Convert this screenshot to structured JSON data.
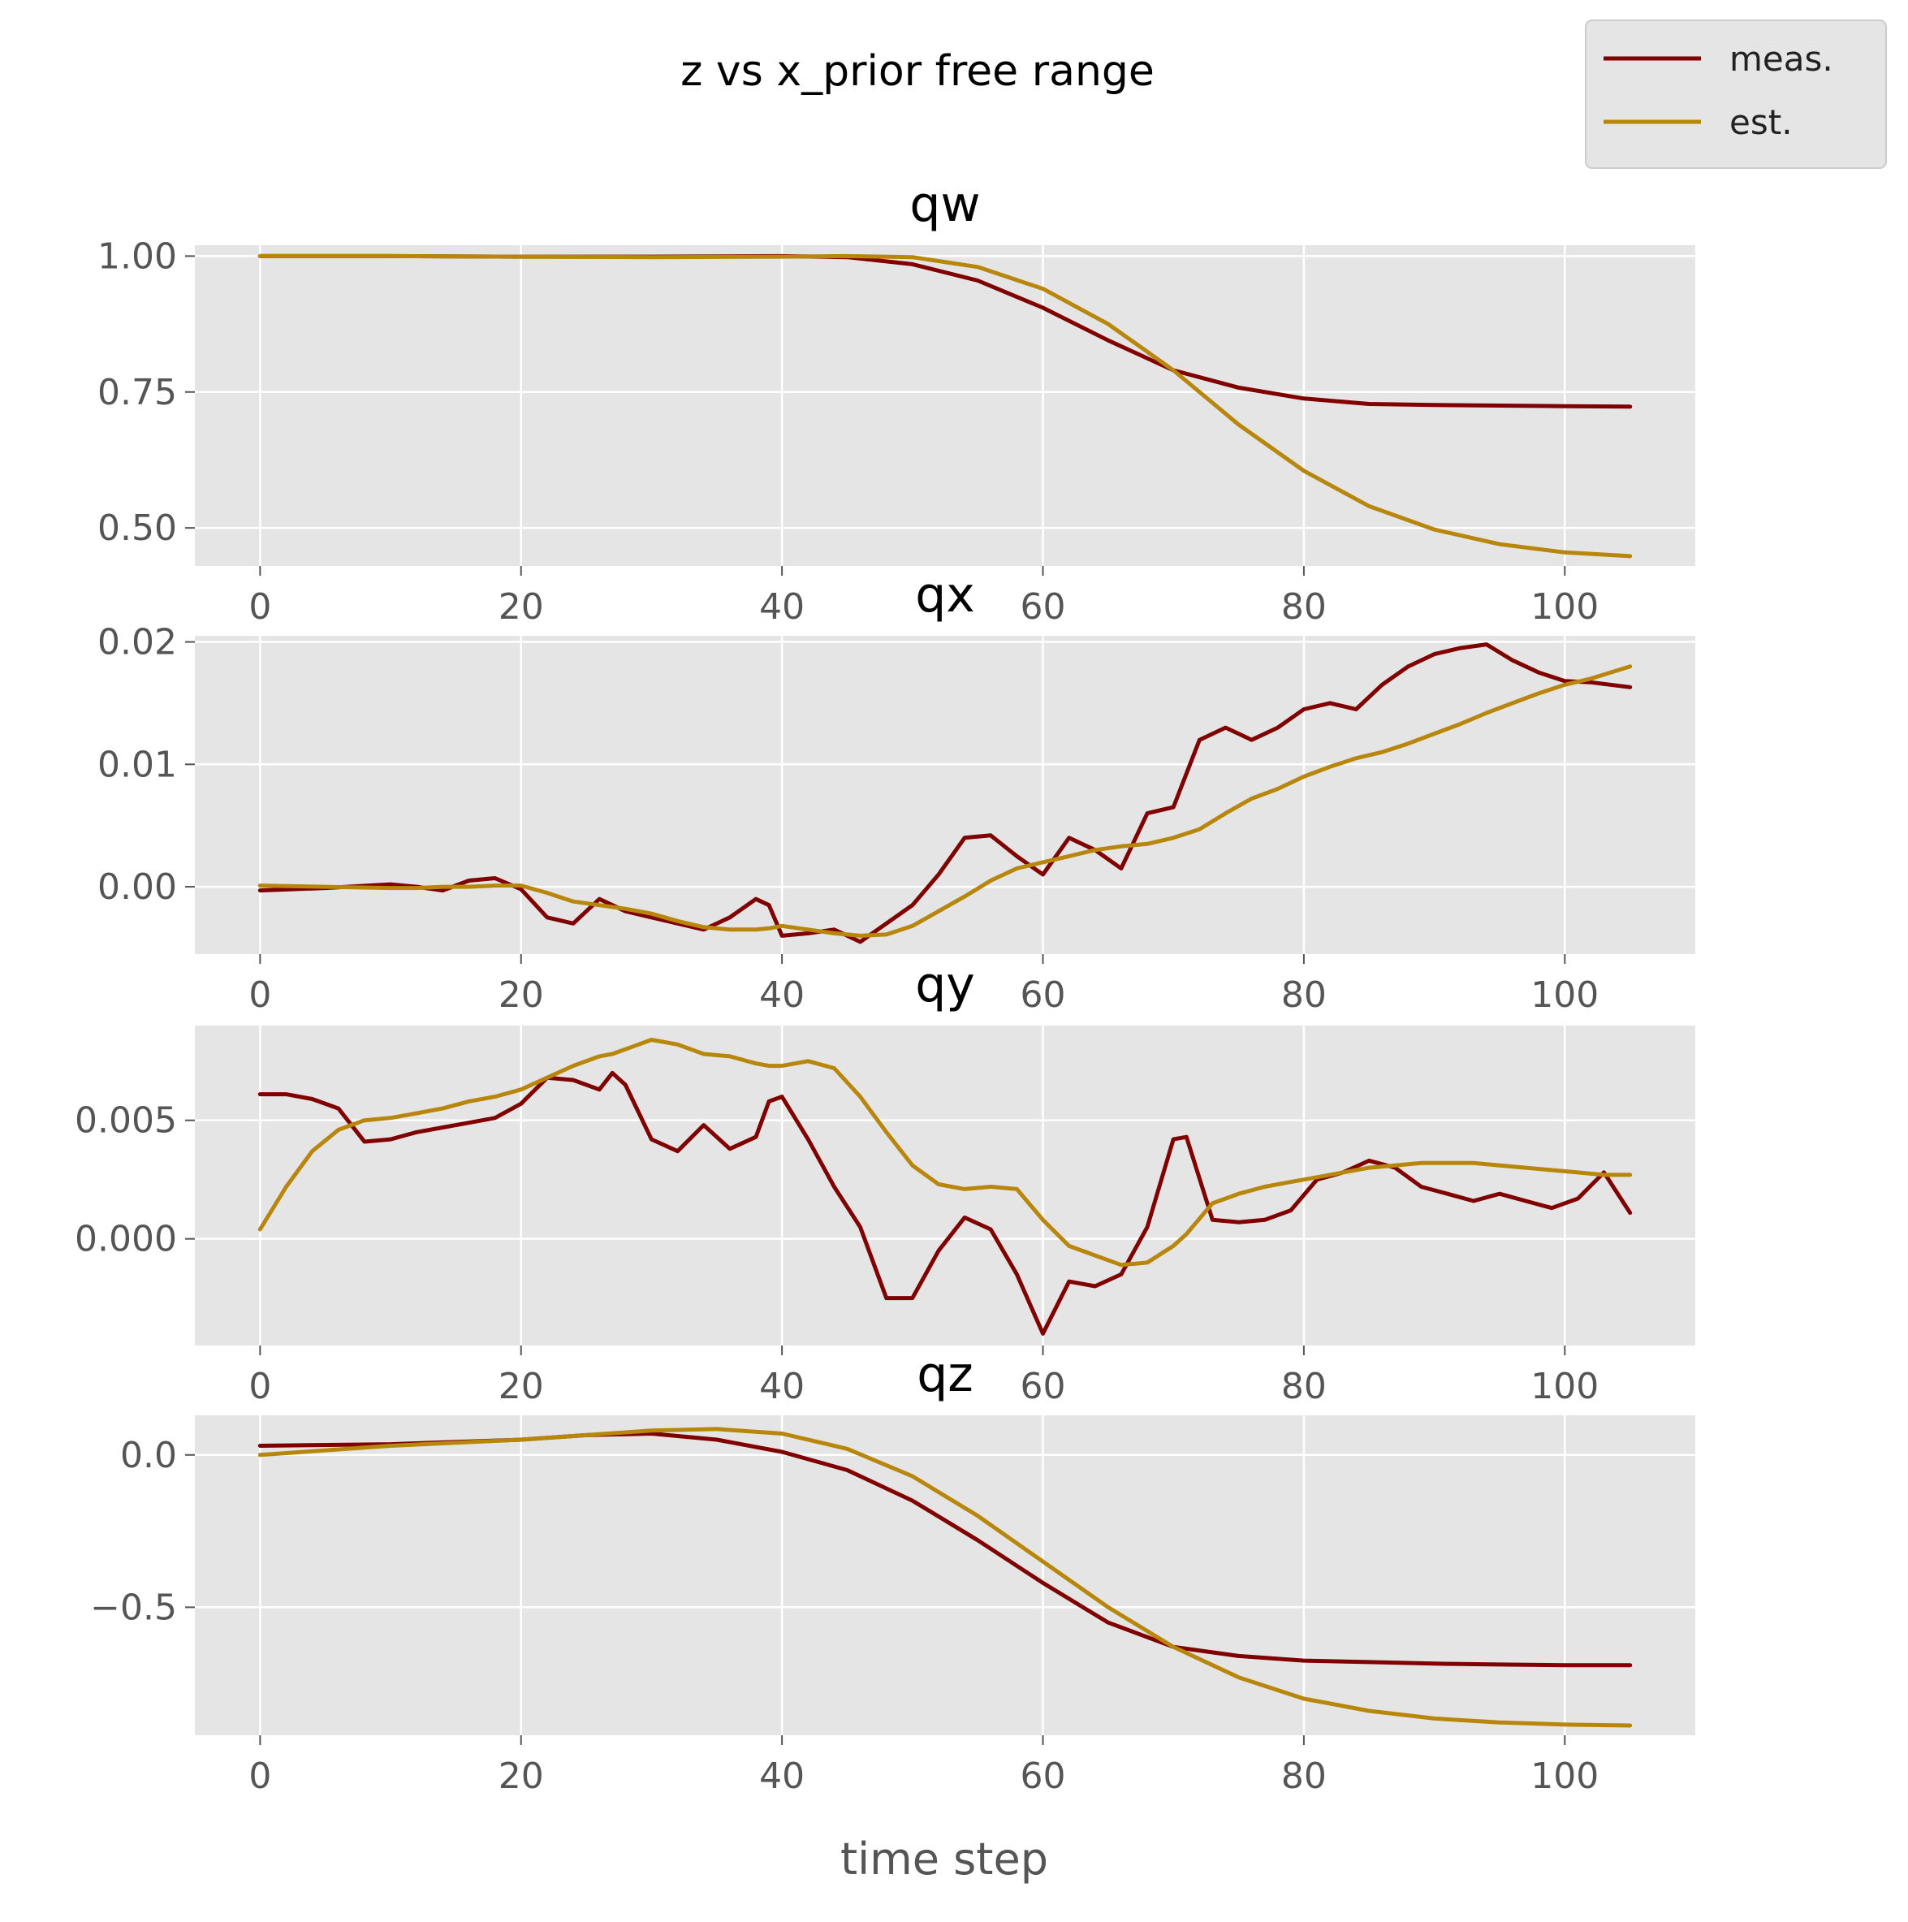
{
  "figure": {
    "suptitle": "z vs x_prior free range",
    "xlabel": "time step",
    "legend": {
      "placement": "top-right",
      "entries": [
        {
          "name": "meas.",
          "color": "#800000"
        },
        {
          "name": "est.",
          "color": "#b8860b"
        }
      ]
    },
    "style": {
      "axes_bg": "#e5e5e5",
      "grid": true,
      "grid_color": "#ffffff"
    }
  },
  "chart_data": [
    {
      "type": "line",
      "title": "qw",
      "xlim": [
        -5,
        110
      ],
      "ylim": [
        0.43,
        1.02
      ],
      "xticks": [
        0,
        20,
        40,
        60,
        80,
        100
      ],
      "yticks": [
        0.5,
        0.75,
        1.0
      ],
      "ytick_labels": [
        "0.50",
        "0.75",
        "1.00"
      ],
      "x": [
        0,
        10,
        20,
        30,
        40,
        45,
        50,
        55,
        60,
        65,
        70,
        75,
        80,
        85,
        90,
        95,
        100,
        105
      ],
      "series": [
        {
          "name": "meas.",
          "values": [
            1.0,
            1.0,
            0.999,
            0.999,
            1.0,
            0.998,
            0.985,
            0.955,
            0.905,
            0.845,
            0.79,
            0.758,
            0.738,
            0.728,
            0.726,
            0.725,
            0.724,
            0.723
          ]
        },
        {
          "name": "est.",
          "values": [
            1.0,
            1.0,
            0.999,
            0.998,
            0.999,
            1.0,
            0.998,
            0.98,
            0.94,
            0.875,
            0.79,
            0.69,
            0.605,
            0.54,
            0.497,
            0.47,
            0.455,
            0.448
          ]
        }
      ]
    },
    {
      "type": "line",
      "title": "qx",
      "xlim": [
        -5,
        110
      ],
      "ylim": [
        -0.0055,
        0.0205
      ],
      "xticks": [
        0,
        20,
        40,
        60,
        80,
        100
      ],
      "yticks": [
        0.0,
        0.01,
        0.02
      ],
      "ytick_labels": [
        "0.00",
        "0.01",
        "0.02"
      ],
      "x": [
        0,
        5,
        10,
        12,
        14,
        16,
        18,
        20,
        22,
        24,
        26,
        28,
        30,
        32,
        34,
        36,
        38,
        39,
        40,
        42,
        44,
        46,
        48,
        50,
        52,
        54,
        56,
        58,
        60,
        62,
        64,
        66,
        68,
        70,
        72,
        74,
        76,
        78,
        80,
        82,
        84,
        86,
        88,
        90,
        92,
        94,
        96,
        98,
        100,
        102,
        105
      ],
      "series": [
        {
          "name": "meas.",
          "values": [
            -0.0003,
            -0.0001,
            0.0002,
            0.0,
            -0.0003,
            0.0005,
            0.0007,
            -0.0002,
            -0.0025,
            -0.003,
            -0.001,
            -0.002,
            -0.0025,
            -0.003,
            -0.0035,
            -0.0025,
            -0.001,
            -0.0015,
            -0.004,
            -0.0038,
            -0.0035,
            -0.0045,
            -0.003,
            -0.0015,
            0.001,
            0.004,
            0.0042,
            0.0025,
            0.001,
            0.004,
            0.003,
            0.0015,
            0.006,
            0.0065,
            0.012,
            0.013,
            0.012,
            0.013,
            0.0145,
            0.015,
            0.0145,
            0.0165,
            0.018,
            0.019,
            0.0195,
            0.0198,
            0.0185,
            0.0175,
            0.0168,
            0.0167,
            0.0163
          ]
        },
        {
          "name": "est.",
          "values": [
            0.0001,
            0.0,
            -0.0001,
            -0.0001,
            0.0,
            0.0,
            0.0001,
            0.0001,
            -0.0005,
            -0.0012,
            -0.0015,
            -0.0018,
            -0.0022,
            -0.0028,
            -0.0033,
            -0.0035,
            -0.0035,
            -0.0034,
            -0.0032,
            -0.0035,
            -0.0038,
            -0.004,
            -0.0039,
            -0.0032,
            -0.002,
            -0.0008,
            0.0005,
            0.0015,
            0.002,
            0.0025,
            0.003,
            0.0033,
            0.0035,
            0.004,
            0.0047,
            0.006,
            0.0072,
            0.008,
            0.009,
            0.0098,
            0.0105,
            0.011,
            0.0117,
            0.0125,
            0.0133,
            0.0142,
            0.015,
            0.0158,
            0.0165,
            0.017,
            0.018
          ]
        }
      ]
    },
    {
      "type": "line",
      "title": "qy",
      "xlim": [
        -5,
        110
      ],
      "ylim": [
        -0.0045,
        0.009
      ],
      "xticks": [
        0,
        20,
        40,
        60,
        80,
        100
      ],
      "yticks": [
        0.0,
        0.005
      ],
      "ytick_labels": [
        "0.000",
        "0.005"
      ],
      "x": [
        0,
        2,
        4,
        6,
        8,
        10,
        12,
        14,
        16,
        18,
        20,
        22,
        24,
        26,
        27,
        28,
        30,
        32,
        34,
        36,
        38,
        39,
        40,
        42,
        44,
        46,
        48,
        50,
        52,
        54,
        56,
        58,
        60,
        62,
        64,
        66,
        68,
        70,
        71,
        73,
        75,
        77,
        79,
        81,
        83,
        85,
        87,
        89,
        91,
        93,
        95,
        97,
        99,
        101,
        103,
        105
      ],
      "series": [
        {
          "name": "meas.",
          "values": [
            0.0061,
            0.0061,
            0.0059,
            0.0055,
            0.0041,
            0.0042,
            0.0045,
            0.0047,
            0.0049,
            0.0051,
            0.0057,
            0.0068,
            0.0067,
            0.0063,
            0.007,
            0.0065,
            0.0042,
            0.0037,
            0.0048,
            0.0038,
            0.0043,
            0.0058,
            0.006,
            0.0042,
            0.0022,
            0.0005,
            -0.0025,
            -0.0025,
            -0.0005,
            0.0009,
            0.0004,
            -0.0015,
            -0.004,
            -0.0018,
            -0.002,
            -0.0015,
            0.0005,
            0.0042,
            0.0043,
            0.0008,
            0.0007,
            0.0008,
            0.0012,
            0.0025,
            0.0028,
            0.0033,
            0.003,
            0.0022,
            0.0019,
            0.0016,
            0.0019,
            0.0016,
            0.0013,
            0.0017,
            0.0028,
            0.0011
          ]
        },
        {
          "name": "est.",
          "values": [
            0.0004,
            0.0022,
            0.0037,
            0.0046,
            0.005,
            0.0051,
            0.0053,
            0.0055,
            0.0058,
            0.006,
            0.0063,
            0.0068,
            0.0073,
            0.0077,
            0.0078,
            0.008,
            0.0084,
            0.0082,
            0.0078,
            0.0077,
            0.0074,
            0.0073,
            0.0073,
            0.0075,
            0.0072,
            0.006,
            0.0045,
            0.0031,
            0.0023,
            0.0021,
            0.0022,
            0.0021,
            0.0008,
            -0.0003,
            -0.0007,
            -0.0011,
            -0.001,
            -0.0003,
            0.0002,
            0.0015,
            0.0019,
            0.0022,
            0.0024,
            0.0026,
            0.0028,
            0.003,
            0.0031,
            0.0032,
            0.0032,
            0.0032,
            0.0031,
            0.003,
            0.0029,
            0.0028,
            0.0027,
            0.0027
          ]
        }
      ]
    },
    {
      "type": "line",
      "title": "qz",
      "xlim": [
        -5,
        110
      ],
      "ylim": [
        -0.92,
        0.13
      ],
      "xticks": [
        0,
        20,
        40,
        60,
        80,
        100
      ],
      "yticks": [
        -0.5,
        0.0
      ],
      "ytick_labels": [
        "−0.5",
        "0.0"
      ],
      "x": [
        0,
        10,
        20,
        25,
        30,
        35,
        40,
        45,
        50,
        55,
        60,
        65,
        70,
        75,
        80,
        85,
        90,
        95,
        100,
        105
      ],
      "series": [
        {
          "name": "meas.",
          "values": [
            0.03,
            0.035,
            0.05,
            0.065,
            0.07,
            0.05,
            0.01,
            -0.05,
            -0.15,
            -0.28,
            -0.42,
            -0.55,
            -0.63,
            -0.66,
            -0.675,
            -0.68,
            -0.685,
            -0.688,
            -0.69,
            -0.69
          ]
        },
        {
          "name": "est.",
          "values": [
            0.0,
            0.03,
            0.05,
            0.065,
            0.08,
            0.085,
            0.07,
            0.02,
            -0.07,
            -0.2,
            -0.35,
            -0.5,
            -0.63,
            -0.73,
            -0.8,
            -0.84,
            -0.865,
            -0.878,
            -0.885,
            -0.888
          ]
        }
      ]
    }
  ]
}
